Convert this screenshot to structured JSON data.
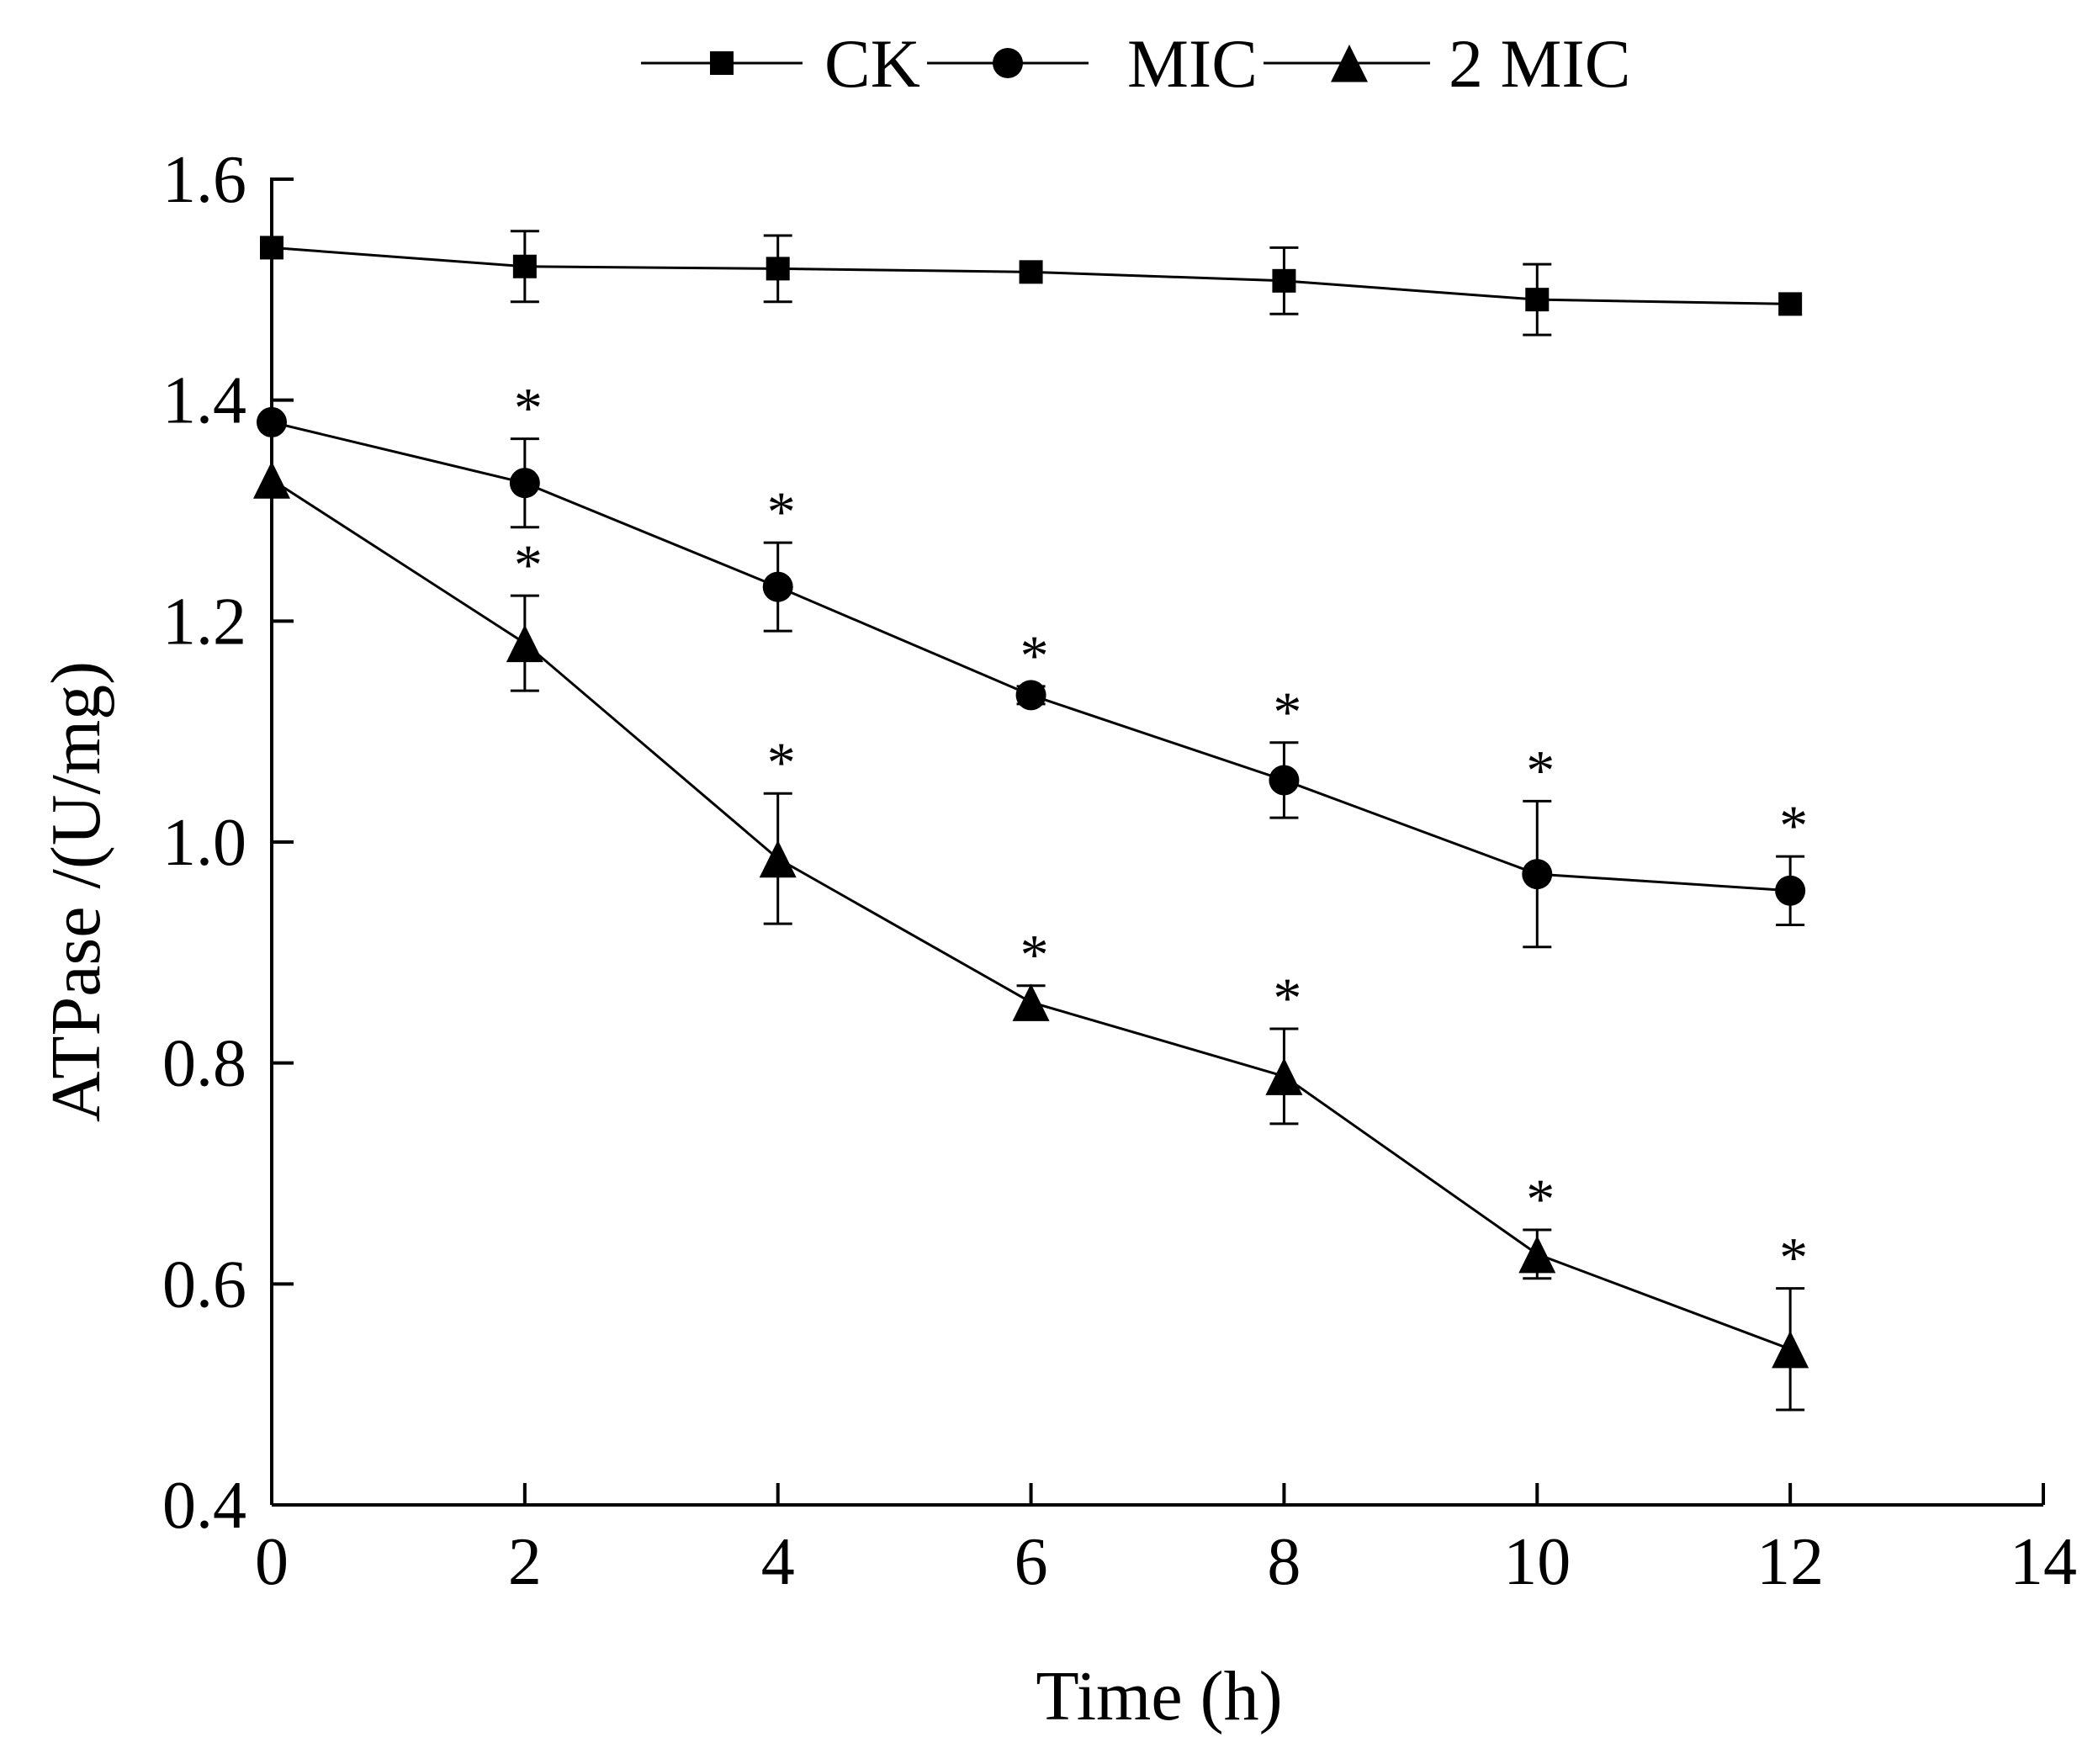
{
  "chart_data": {
    "type": "line",
    "title": "",
    "xlabel": "Time (h)",
    "ylabel": "ATPase /(U/mg)",
    "xlim": [
      0,
      14
    ],
    "ylim": [
      0.4,
      1.6
    ],
    "x_ticks": [
      0,
      2,
      4,
      6,
      8,
      10,
      12,
      14
    ],
    "y_ticks": [
      0.4,
      0.6,
      0.8,
      1.0,
      1.2,
      1.4,
      1.6
    ],
    "x_tick_labels": [
      "0",
      "2",
      "4",
      "6",
      "8",
      "10",
      "12",
      "14"
    ],
    "y_tick_labels": [
      "0.4",
      "0.6",
      "0.8",
      "1.0",
      "1.2",
      "1.4",
      "1.6"
    ],
    "grid": false,
    "legend_position": "top-center",
    "significance_marker": "*",
    "series": [
      {
        "name": "CK",
        "marker": "square",
        "color": "#000000",
        "x": [
          0,
          2,
          4,
          6,
          8,
          10,
          12
        ],
        "y": [
          1.538,
          1.521,
          1.519,
          1.516,
          1.508,
          1.491,
          1.487
        ],
        "err": [
          0.0,
          0.032,
          0.03,
          0.0,
          0.03,
          0.032,
          0.0
        ],
        "significant": [
          false,
          false,
          false,
          false,
          false,
          false,
          false
        ]
      },
      {
        "name": "MIC",
        "marker": "circle",
        "color": "#000000",
        "x": [
          0,
          2,
          4,
          6,
          8,
          10,
          12
        ],
        "y": [
          1.38,
          1.325,
          1.231,
          1.133,
          1.056,
          0.971,
          0.956
        ],
        "err": [
          0.0,
          0.04,
          0.04,
          0.008,
          0.034,
          0.066,
          0.031
        ],
        "significant": [
          false,
          true,
          true,
          true,
          true,
          true,
          true
        ]
      },
      {
        "name": "2 MIC",
        "marker": "triangle",
        "color": "#000000",
        "x": [
          0,
          2,
          4,
          6,
          8,
          10,
          12
        ],
        "y": [
          1.328,
          1.18,
          0.985,
          0.855,
          0.788,
          0.627,
          0.541
        ],
        "err": [
          0.0,
          0.043,
          0.059,
          0.015,
          0.043,
          0.022,
          0.055
        ],
        "significant": [
          false,
          true,
          true,
          true,
          true,
          true,
          true
        ]
      }
    ]
  }
}
